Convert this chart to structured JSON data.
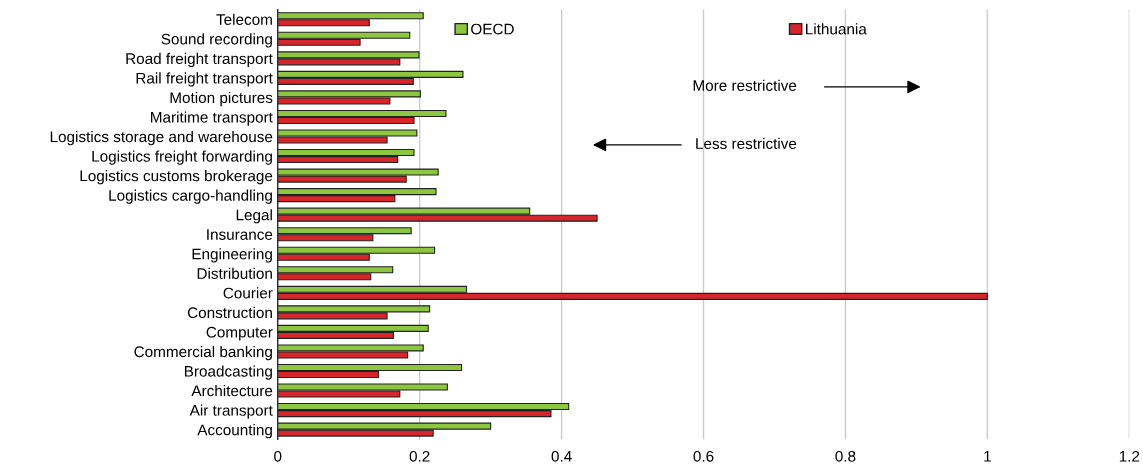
{
  "chart_data": {
    "type": "bar",
    "orientation": "horizontal",
    "categories": [
      "Telecom",
      "Sound recording",
      "Road freight transport",
      "Rail freight transport",
      "Motion pictures",
      "Maritime transport",
      "Logistics storage and warehouse",
      "Logistics freight forwarding",
      "Logistics customs brokerage",
      "Logistics cargo-handling",
      "Legal",
      "Insurance",
      "Engineering",
      "Distribution",
      "Courier",
      "Construction",
      "Computer",
      "Commercial banking",
      "Broadcasting",
      "Architecture",
      "Air transport",
      "Accounting"
    ],
    "series": [
      {
        "name": "OECD",
        "color": "#8dc63f",
        "values": [
          0.205,
          0.186,
          0.199,
          0.261,
          0.201,
          0.237,
          0.196,
          0.192,
          0.226,
          0.223,
          0.355,
          0.188,
          0.221,
          0.162,
          0.266,
          0.214,
          0.212,
          0.205,
          0.259,
          0.239,
          0.41,
          0.3
        ]
      },
      {
        "name": "Lithuania",
        "color": "#d7262b",
        "values": [
          0.129,
          0.116,
          0.172,
          0.191,
          0.158,
          0.192,
          0.154,
          0.169,
          0.181,
          0.165,
          0.45,
          0.134,
          0.129,
          0.131,
          1.0,
          0.154,
          0.163,
          0.183,
          0.142,
          0.172,
          0.385,
          0.219
        ]
      }
    ],
    "xlim": [
      0,
      1.2
    ],
    "xticks": [
      0,
      0.2,
      0.4,
      0.6,
      0.8,
      1,
      1.2
    ],
    "grid": "x",
    "legend": "top",
    "annotations": [
      "More restrictive",
      "Less restrictive"
    ]
  }
}
